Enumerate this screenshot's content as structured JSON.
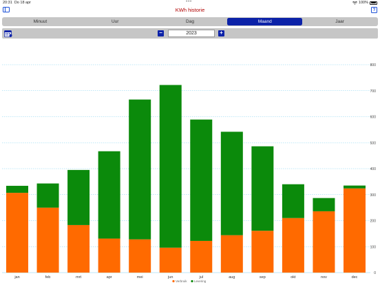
{
  "status_bar": {
    "time": "20:31",
    "date": "Do 18 apr",
    "battery": "100%"
  },
  "header": {
    "title": "KWh historie",
    "help_label": "?"
  },
  "tabs": [
    {
      "label": "Minuut",
      "active": false
    },
    {
      "label": "Uur",
      "active": false
    },
    {
      "label": "Dag",
      "active": false
    },
    {
      "label": "Maand",
      "active": true
    },
    {
      "label": "Jaar",
      "active": false
    }
  ],
  "year_nav": {
    "minus_label": "−",
    "plus_label": "+",
    "year": "2023"
  },
  "colors": {
    "verbruik": "#ff6a00",
    "levering": "#0b8a0b",
    "accent": "#0c22a8",
    "title": "#b00000",
    "grid": "#7fd0f0"
  },
  "chart_data": {
    "type": "bar",
    "stacked": true,
    "categories": [
      "jan",
      "feb",
      "mrt",
      "apr",
      "mei",
      "jun",
      "jul",
      "aug",
      "sep",
      "okt",
      "nov",
      "dec"
    ],
    "series": [
      {
        "name": "Verbruik",
        "values": [
          307,
          250,
          183,
          131,
          128,
          96,
          122,
          144,
          161,
          210,
          236,
          324
        ]
      },
      {
        "name": "Levering",
        "values": [
          27,
          93,
          212,
          336,
          538,
          626,
          467,
          398,
          325,
          130,
          51,
          11
        ]
      }
    ],
    "ylim": [
      0,
      800
    ],
    "yticks": [
      0,
      100,
      200,
      300,
      400,
      500,
      600,
      700,
      800
    ],
    "grid": true,
    "legend_position": "bottom-center",
    "xlabel": "",
    "ylabel": ""
  }
}
